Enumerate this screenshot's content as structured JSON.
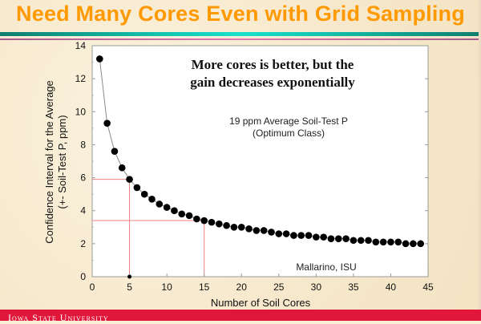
{
  "slide": {
    "title": "Need Many Cores Even with Grid Sampling",
    "footer": "Iowa State University",
    "colors": {
      "title": "#ff9900",
      "footer_band": "#e0163a",
      "teal_rule": "#12c7b3",
      "pink_rule": "#e07ab6",
      "guide_lines": "#f08080"
    }
  },
  "chart_data": {
    "type": "scatter",
    "title": "",
    "xlabel": "Number of Soil Cores",
    "ylabel": "Confidence Interval for the Average",
    "ylabel2": "(+- Soil-Test P, ppm)",
    "xlim": [
      0,
      45
    ],
    "ylim": [
      0,
      14
    ],
    "xticks": [
      0,
      5,
      10,
      15,
      20,
      25,
      30,
      35,
      40,
      45
    ],
    "yticks": [
      0,
      2,
      4,
      6,
      8,
      10,
      12,
      14
    ],
    "grid": false,
    "series": [
      {
        "name": "Confidence interval",
        "x": [
          1,
          2,
          3,
          4,
          5,
          6,
          7,
          8,
          9,
          10,
          11,
          12,
          13,
          14,
          15,
          16,
          17,
          18,
          19,
          20,
          21,
          22,
          23,
          24,
          25,
          26,
          27,
          28,
          29,
          30,
          31,
          32,
          33,
          34,
          35,
          36,
          37,
          38,
          39,
          40,
          41,
          42,
          43,
          44
        ],
        "y": [
          13.2,
          9.3,
          7.6,
          6.6,
          5.9,
          5.4,
          5.0,
          4.7,
          4.4,
          4.2,
          4.0,
          3.8,
          3.7,
          3.5,
          3.4,
          3.3,
          3.2,
          3.1,
          3.0,
          3.0,
          2.9,
          2.8,
          2.8,
          2.7,
          2.6,
          2.6,
          2.5,
          2.5,
          2.5,
          2.4,
          2.4,
          2.3,
          2.3,
          2.3,
          2.2,
          2.2,
          2.2,
          2.1,
          2.1,
          2.1,
          2.1,
          2.0,
          2.0,
          2.0
        ]
      }
    ],
    "extra_point": {
      "x": 5,
      "y": 0
    },
    "guide_lines": [
      {
        "x": 5,
        "y": 5.9
      },
      {
        "x": 15,
        "y": 3.4
      }
    ],
    "annotations": {
      "headline_line1": "More cores is better, but the",
      "headline_line2": "gain decreases exponentially",
      "note_line1": "19 ppm Average Soil-Test P",
      "note_line2": "(Optimum Class)",
      "credit": "Mallarino, ISU"
    }
  }
}
